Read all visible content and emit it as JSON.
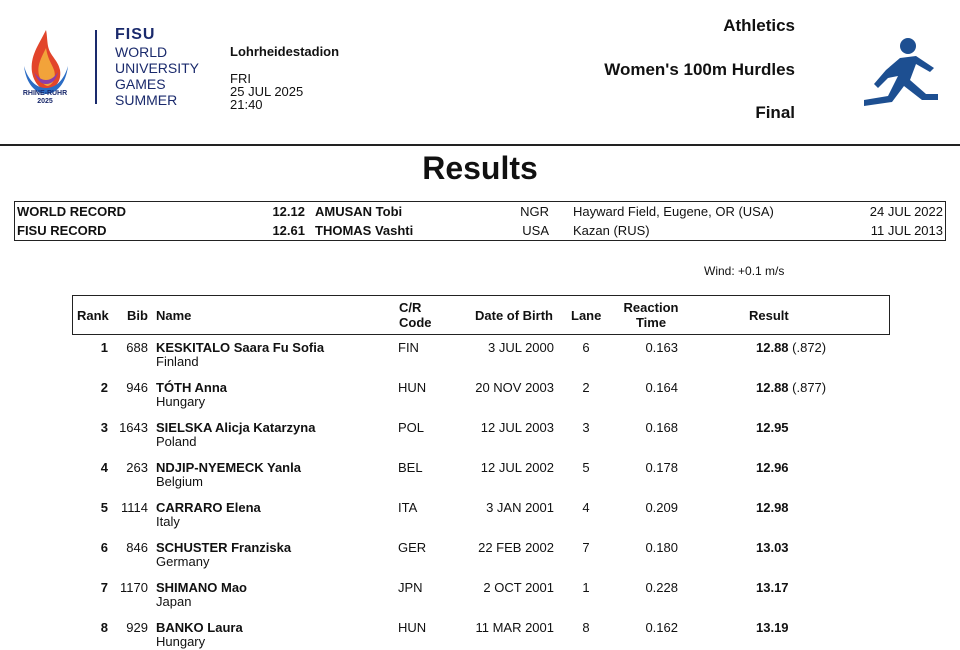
{
  "header": {
    "logo_caption_1": "RHINE-RUHR",
    "logo_caption_2": "2025",
    "fisu": "FISU",
    "fisu_lines": [
      "WORLD",
      "UNIVERSITY",
      "GAMES",
      "SUMMER"
    ],
    "venue": "Lohrheidestadion",
    "day": "FRI",
    "date": "25 JUL 2025",
    "time": "21:40",
    "sport": "Athletics",
    "event": "Women's 100m Hurdles",
    "phase": "Final",
    "pictogram_icon": "hurdles-runner-icon"
  },
  "title": "Results",
  "records": [
    {
      "label": "WORLD RECORD",
      "mark": "12.12",
      "name": "AMUSAN Tobi",
      "nat": "NGR",
      "venue": "Hayward Field, Eugene, OR (USA)",
      "date": "24 JUL 2022"
    },
    {
      "label": "FISU RECORD",
      "mark": "12.61",
      "name": "THOMAS Vashti",
      "nat": "USA",
      "venue": "Kazan (RUS)",
      "date": "11 JUL 2013"
    }
  ],
  "wind": "Wind: +0.1 m/s",
  "columns": {
    "rank": "Rank",
    "bib": "Bib",
    "name": "Name",
    "code_1": "C/R",
    "code_2": "Code",
    "dob": "Date of Birth",
    "lane": "Lane",
    "rt_1": "Reaction",
    "rt_2": "Time",
    "result": "Result"
  },
  "results": [
    {
      "rank": "1",
      "bib": "688",
      "name": "KESKITALO Saara Fu Sofia",
      "country": "Finland",
      "code": "FIN",
      "dob": "3 JUL 2000",
      "lane": "6",
      "rt": "0.163",
      "result": "12.88",
      "extra": " (.872)"
    },
    {
      "rank": "2",
      "bib": "946",
      "name": "TÓTH Anna",
      "country": "Hungary",
      "code": "HUN",
      "dob": "20 NOV 2003",
      "lane": "2",
      "rt": "0.164",
      "result": "12.88",
      "extra": " (.877)"
    },
    {
      "rank": "3",
      "bib": "1643",
      "name": "SIELSKA Alicja Katarzyna",
      "country": "Poland",
      "code": "POL",
      "dob": "12 JUL 2003",
      "lane": "3",
      "rt": "0.168",
      "result": "12.95",
      "extra": ""
    },
    {
      "rank": "4",
      "bib": "263",
      "name": "NDJIP-NYEMECK Yanla",
      "country": "Belgium",
      "code": "BEL",
      "dob": "12 JUL 2002",
      "lane": "5",
      "rt": "0.178",
      "result": "12.96",
      "extra": ""
    },
    {
      "rank": "5",
      "bib": "1114",
      "name": "CARRARO Elena",
      "country": "Italy",
      "code": "ITA",
      "dob": "3 JAN 2001",
      "lane": "4",
      "rt": "0.209",
      "result": "12.98",
      "extra": ""
    },
    {
      "rank": "6",
      "bib": "846",
      "name": "SCHUSTER Franziska",
      "country": "Germany",
      "code": "GER",
      "dob": "22 FEB 2002",
      "lane": "7",
      "rt": "0.180",
      "result": "13.03",
      "extra": ""
    },
    {
      "rank": "7",
      "bib": "1170",
      "name": "SHIMANO Mao",
      "country": "Japan",
      "code": "JPN",
      "dob": "2 OCT 2001",
      "lane": "1",
      "rt": "0.228",
      "result": "13.17",
      "extra": ""
    },
    {
      "rank": "8",
      "bib": "929",
      "name": "BANKO Laura",
      "country": "Hungary",
      "code": "HUN",
      "dob": "11 MAR 2001",
      "lane": "8",
      "rt": "0.162",
      "result": "13.19",
      "extra": ""
    }
  ]
}
